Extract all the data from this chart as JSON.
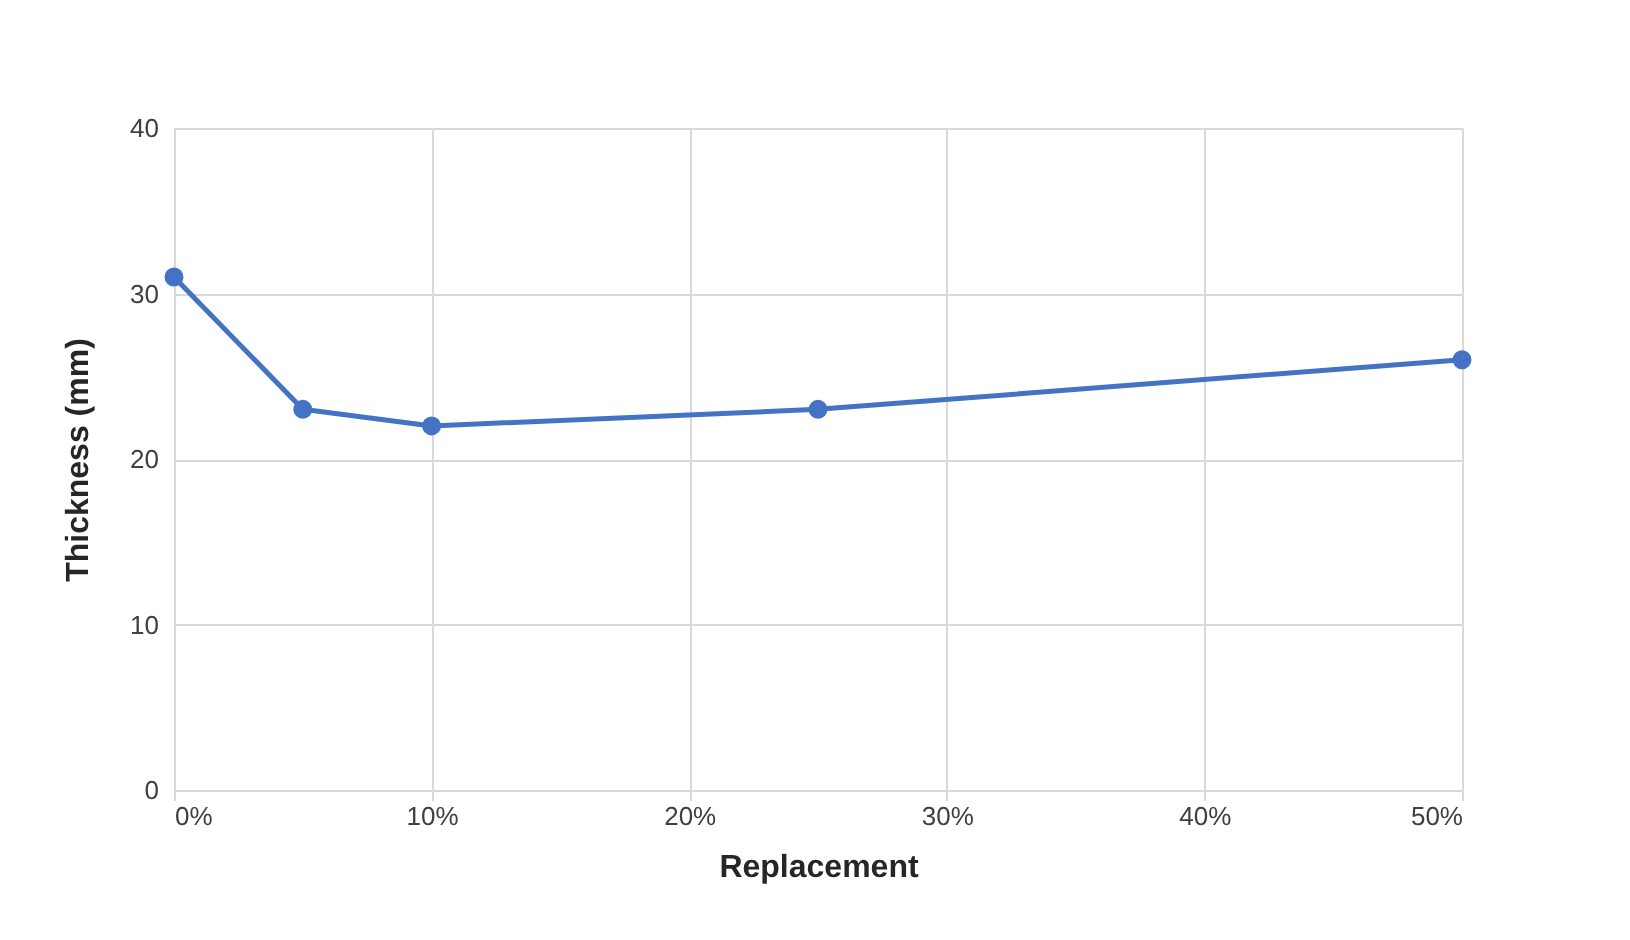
{
  "chart_data": {
    "type": "line",
    "xlabel": "Replacement",
    "ylabel": "Thickness (mm)",
    "x": [
      0,
      5,
      10,
      25,
      50
    ],
    "series": [
      {
        "color": "#4472c4",
        "values": [
          31,
          23,
          22,
          23,
          26
        ]
      }
    ],
    "xlim": [
      0,
      50
    ],
    "xticks": [
      {
        "value": 0,
        "label": "0%"
      },
      {
        "value": 10,
        "label": "10%"
      },
      {
        "value": 20,
        "label": "20%"
      },
      {
        "value": 30,
        "label": "30%"
      },
      {
        "value": 40,
        "label": "40%"
      },
      {
        "value": 50,
        "label": "50%"
      }
    ],
    "ylim": [
      0,
      40
    ],
    "yticks": [
      0,
      10,
      20,
      30,
      40
    ],
    "grid": true,
    "marker": "circle",
    "line_style": "solid"
  }
}
